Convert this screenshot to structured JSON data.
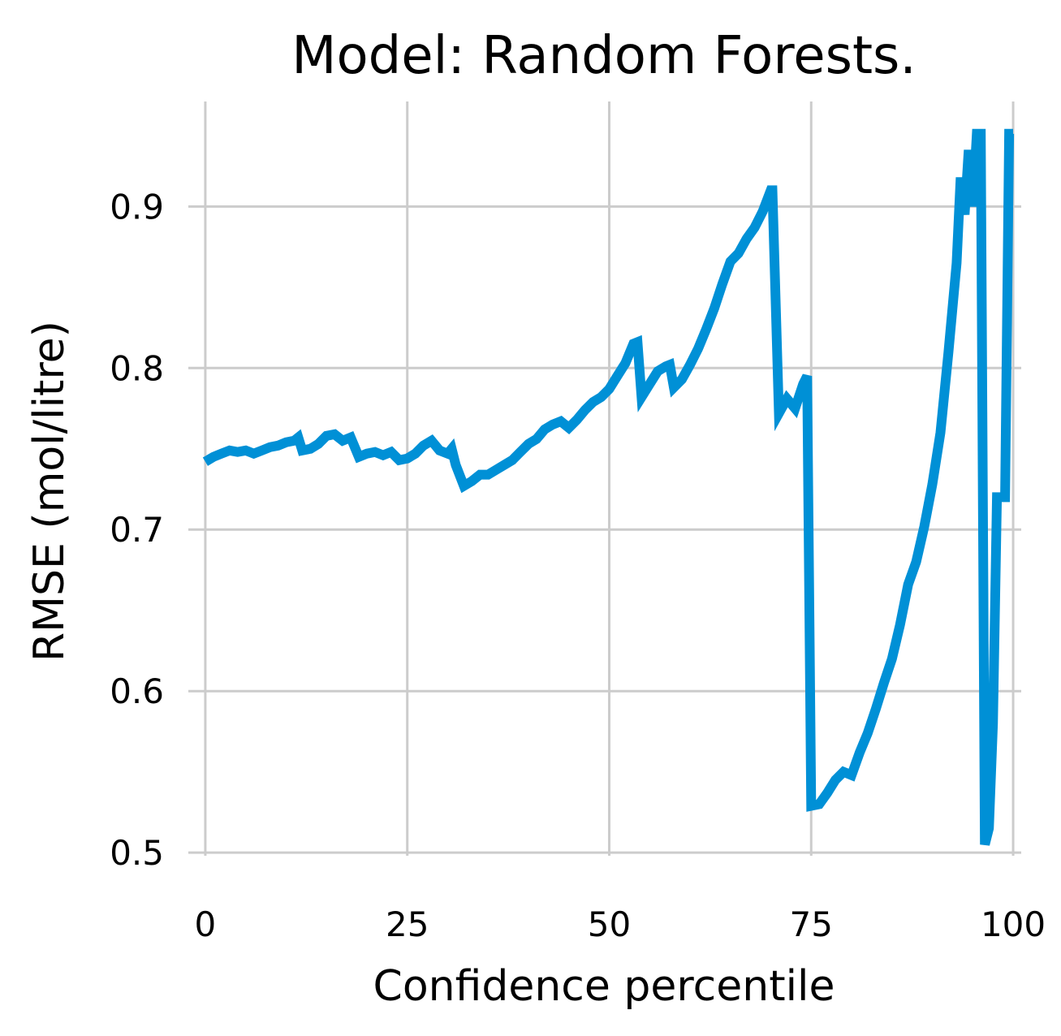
{
  "chart_data": {
    "type": "line",
    "title": "Model: Random Forests.",
    "xlabel": "Confidence percentile",
    "ylabel": "RMSE (mol/litre)",
    "xlim": [
      -1.5,
      101
    ],
    "ylim": [
      0.485,
      0.965
    ],
    "x_ticks": [
      0,
      25,
      50,
      75,
      100
    ],
    "x_tick_labels": [
      "0",
      "25",
      "50",
      "75",
      "100"
    ],
    "y_ticks": [
      0.5,
      0.6,
      0.7,
      0.8,
      0.9
    ],
    "y_tick_labels": [
      "0.5",
      "0.6",
      "0.7",
      "0.8",
      "0.9"
    ],
    "grid": true,
    "color": "#0090d6",
    "series": [
      {
        "x": [
          0,
          1,
          2,
          3,
          4,
          5,
          6,
          7,
          8,
          9,
          10,
          11,
          11.5,
          12,
          13,
          14,
          15,
          16,
          17,
          18,
          19,
          20,
          21,
          22,
          23,
          24,
          25,
          26,
          27,
          28,
          29,
          30,
          30.5,
          31,
          32,
          33,
          34,
          35,
          36,
          37,
          38,
          39,
          40,
          41,
          42,
          43,
          44,
          45,
          46,
          47,
          48,
          49,
          50,
          51,
          52,
          53,
          53.5,
          54,
          55,
          56,
          57,
          57.5,
          58,
          59,
          60,
          61,
          62,
          63,
          64,
          65,
          66,
          67,
          68,
          69,
          70,
          70.2,
          71,
          72,
          73,
          74,
          74.5,
          75,
          76,
          77,
          78,
          79,
          80,
          81,
          82,
          83,
          84,
          85,
          86,
          87,
          88,
          89,
          90,
          91,
          92,
          93,
          93.5,
          94,
          94.5,
          95,
          95.5,
          96,
          96.5,
          97,
          97.5,
          98,
          99,
          99.5,
          100
        ],
        "y": [
          0.742,
          0.745,
          0.747,
          0.749,
          0.748,
          0.749,
          0.747,
          0.749,
          0.751,
          0.752,
          0.754,
          0.755,
          0.757,
          0.749,
          0.75,
          0.753,
          0.758,
          0.759,
          0.755,
          0.757,
          0.745,
          0.747,
          0.748,
          0.746,
          0.748,
          0.743,
          0.744,
          0.747,
          0.752,
          0.755,
          0.749,
          0.747,
          0.75,
          0.74,
          0.727,
          0.73,
          0.734,
          0.734,
          0.737,
          0.74,
          0.743,
          0.748,
          0.753,
          0.756,
          0.762,
          0.765,
          0.767,
          0.763,
          0.768,
          0.774,
          0.779,
          0.782,
          0.787,
          0.795,
          0.803,
          0.815,
          0.816,
          0.782,
          0.79,
          0.798,
          0.801,
          0.802,
          0.788,
          0.793,
          0.802,
          0.812,
          0.824,
          0.837,
          0.852,
          0.866,
          0.871,
          0.88,
          0.887,
          0.897,
          0.91,
          0.91,
          0.772,
          0.781,
          0.775,
          0.79,
          0.795,
          0.529,
          0.53,
          0.537,
          0.545,
          0.55,
          0.548,
          0.562,
          0.574,
          0.589,
          0.605,
          0.62,
          0.641,
          0.666,
          0.68,
          0.702,
          0.728,
          0.76,
          0.81,
          0.865,
          0.918,
          0.895,
          0.935,
          0.9,
          0.945,
          0.945,
          0.505,
          0.515,
          0.58,
          0.72,
          0.72,
          0.945,
          0.945
        ]
      }
    ]
  }
}
